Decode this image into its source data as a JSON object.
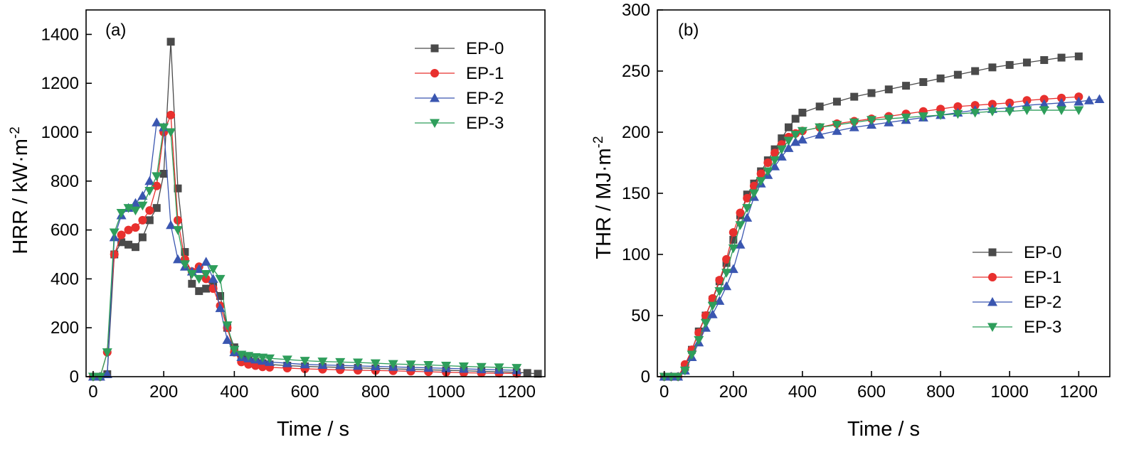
{
  "chart_data": [
    {
      "type": "line",
      "panel_label": "(a)",
      "xlabel": "Time / s",
      "ylabel": "HRR / kW·m",
      "ylabel_sup": "-2",
      "xlim": [
        -20,
        1280
      ],
      "ylim": [
        0,
        1500
      ],
      "xticks": [
        0,
        200,
        400,
        600,
        800,
        1000,
        1200
      ],
      "yticks": [
        0,
        200,
        400,
        600,
        800,
        1000,
        1200,
        1400
      ],
      "legend_position": "top-right",
      "series": [
        {
          "name": "EP-0",
          "color": "#4a4a4a",
          "marker": "square",
          "x": [
            0,
            20,
            40,
            60,
            80,
            100,
            120,
            140,
            160,
            180,
            200,
            220,
            240,
            260,
            280,
            300,
            320,
            340,
            360,
            380,
            400,
            420,
            440,
            460,
            480,
            500,
            550,
            600,
            650,
            700,
            750,
            800,
            850,
            900,
            950,
            1000,
            1050,
            1100,
            1150,
            1200,
            1230,
            1260
          ],
          "y": [
            0,
            0,
            10,
            500,
            550,
            540,
            530,
            570,
            640,
            690,
            830,
            1370,
            770,
            510,
            380,
            350,
            360,
            370,
            330,
            200,
            120,
            80,
            70,
            60,
            55,
            50,
            45,
            42,
            40,
            38,
            36,
            34,
            32,
            30,
            28,
            26,
            24,
            22,
            20,
            18,
            15,
            12
          ]
        },
        {
          "name": "EP-1",
          "color": "#e8302e",
          "marker": "circle",
          "x": [
            0,
            20,
            40,
            60,
            80,
            100,
            120,
            140,
            160,
            180,
            200,
            220,
            240,
            260,
            280,
            300,
            320,
            340,
            360,
            380,
            400,
            420,
            440,
            460,
            480,
            500,
            550,
            600,
            650,
            700,
            750,
            800,
            850,
            900,
            950,
            1000,
            1050,
            1100,
            1150,
            1200
          ],
          "y": [
            0,
            0,
            100,
            500,
            580,
            600,
            610,
            640,
            680,
            780,
            1000,
            1070,
            640,
            480,
            430,
            450,
            400,
            360,
            290,
            200,
            100,
            60,
            50,
            45,
            40,
            38,
            35,
            32,
            30,
            28,
            26,
            25,
            24,
            22,
            20,
            18,
            16,
            15,
            14,
            13
          ]
        },
        {
          "name": "EP-2",
          "color": "#3a56b0",
          "marker": "triangle-up",
          "x": [
            0,
            20,
            40,
            60,
            80,
            100,
            120,
            140,
            160,
            180,
            200,
            220,
            240,
            260,
            280,
            300,
            320,
            340,
            360,
            380,
            400,
            420,
            440,
            460,
            480,
            500,
            550,
            600,
            650,
            700,
            750,
            800,
            850,
            900,
            950,
            1000,
            1050,
            1100,
            1150,
            1200
          ],
          "y": [
            0,
            0,
            10,
            570,
            660,
            690,
            710,
            740,
            800,
            1040,
            1020,
            620,
            480,
            450,
            430,
            440,
            470,
            400,
            280,
            150,
            100,
            80,
            75,
            70,
            65,
            60,
            55,
            50,
            48,
            46,
            44,
            42,
            40,
            38,
            36,
            34,
            32,
            30,
            28,
            26
          ]
        },
        {
          "name": "EP-3",
          "color": "#2e9e5b",
          "marker": "triangle-down",
          "x": [
            0,
            20,
            40,
            60,
            80,
            100,
            120,
            140,
            160,
            180,
            200,
            220,
            240,
            260,
            280,
            300,
            320,
            340,
            360,
            380,
            400,
            420,
            440,
            460,
            480,
            500,
            550,
            600,
            650,
            700,
            750,
            800,
            850,
            900,
            950,
            1000,
            1050,
            1100,
            1150,
            1200
          ],
          "y": [
            0,
            0,
            100,
            590,
            670,
            690,
            680,
            700,
            760,
            820,
            1020,
            1000,
            600,
            460,
            420,
            400,
            420,
            440,
            400,
            210,
            110,
            90,
            85,
            80,
            78,
            75,
            70,
            65,
            62,
            60,
            58,
            55,
            52,
            50,
            48,
            45,
            42,
            40,
            38,
            36
          ]
        }
      ]
    },
    {
      "type": "line",
      "panel_label": "(b)",
      "xlabel": "Time / s",
      "ylabel": "THR / MJ·m",
      "ylabel_sup": "-2",
      "xlim": [
        -20,
        1290
      ],
      "ylim": [
        0,
        300
      ],
      "xticks": [
        0,
        200,
        400,
        600,
        800,
        1000,
        1200
      ],
      "yticks": [
        0,
        50,
        100,
        150,
        200,
        250,
        300
      ],
      "legend_position": "bottom-right",
      "series": [
        {
          "name": "EP-0",
          "color": "#4a4a4a",
          "marker": "square",
          "x": [
            0,
            20,
            40,
            60,
            80,
            100,
            120,
            140,
            160,
            180,
            200,
            220,
            240,
            260,
            280,
            300,
            320,
            340,
            360,
            380,
            400,
            450,
            500,
            550,
            600,
            650,
            700,
            750,
            800,
            850,
            900,
            950,
            1000,
            1050,
            1100,
            1150,
            1200
          ],
          "y": [
            0,
            0,
            0,
            8,
            22,
            37,
            50,
            63,
            78,
            93,
            112,
            132,
            149,
            158,
            168,
            177,
            186,
            195,
            204,
            211,
            216,
            221,
            225,
            229,
            232,
            235,
            238,
            241,
            244,
            247,
            250,
            253,
            255,
            257,
            259,
            261,
            262
          ]
        },
        {
          "name": "EP-1",
          "color": "#e8302e",
          "marker": "circle",
          "x": [
            0,
            20,
            40,
            60,
            80,
            100,
            120,
            140,
            160,
            180,
            200,
            220,
            240,
            260,
            280,
            300,
            320,
            340,
            360,
            380,
            400,
            450,
            500,
            550,
            600,
            650,
            700,
            750,
            800,
            850,
            900,
            950,
            1000,
            1050,
            1100,
            1150,
            1200
          ],
          "y": [
            0,
            0,
            0,
            10,
            22,
            36,
            50,
            64,
            79,
            96,
            118,
            134,
            146,
            156,
            166,
            175,
            183,
            190,
            196,
            199,
            201,
            204,
            207,
            209,
            211,
            213,
            215,
            217,
            219,
            221,
            222,
            223,
            224,
            226,
            227,
            228,
            229
          ]
        },
        {
          "name": "EP-2",
          "color": "#3a56b0",
          "marker": "triangle-up",
          "x": [
            0,
            20,
            40,
            60,
            80,
            100,
            120,
            140,
            160,
            180,
            200,
            220,
            240,
            260,
            280,
            300,
            320,
            340,
            360,
            380,
            400,
            450,
            500,
            550,
            600,
            650,
            700,
            750,
            800,
            850,
            900,
            950,
            1000,
            1050,
            1100,
            1150,
            1200,
            1230,
            1260
          ],
          "y": [
            0,
            0,
            0,
            5,
            16,
            28,
            40,
            51,
            62,
            74,
            88,
            108,
            130,
            147,
            158,
            165,
            172,
            180,
            187,
            192,
            194,
            198,
            201,
            204,
            206,
            208,
            210,
            212,
            214,
            216,
            218,
            219,
            220,
            222,
            223,
            224,
            225,
            226,
            227
          ]
        },
        {
          "name": "EP-3",
          "color": "#2e9e5b",
          "marker": "triangle-down",
          "x": [
            0,
            20,
            40,
            60,
            80,
            100,
            120,
            140,
            160,
            180,
            200,
            220,
            240,
            260,
            280,
            300,
            320,
            340,
            360,
            380,
            400,
            450,
            500,
            550,
            600,
            650,
            700,
            750,
            800,
            850,
            900,
            950,
            1000,
            1050,
            1100,
            1150,
            1200
          ],
          "y": [
            0,
            0,
            0,
            5,
            18,
            30,
            44,
            58,
            70,
            85,
            105,
            124,
            138,
            150,
            160,
            168,
            177,
            186,
            193,
            198,
            201,
            204,
            206,
            208,
            210,
            211,
            212,
            213,
            214,
            215,
            216,
            217,
            217,
            218,
            218,
            218,
            218
          ]
        }
      ]
    }
  ]
}
